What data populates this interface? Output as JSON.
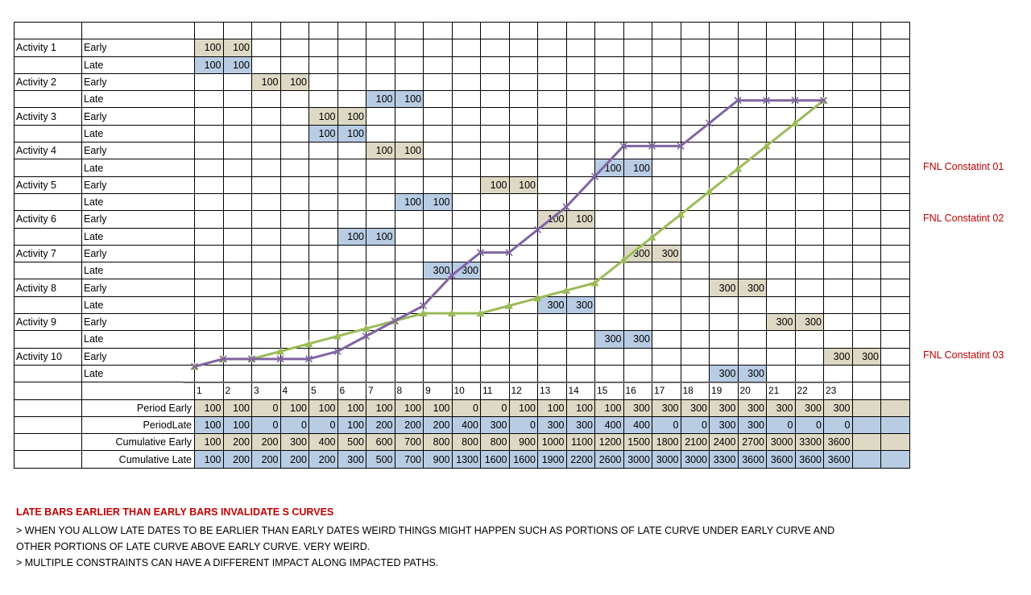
{
  "periods": [
    "1",
    "2",
    "3",
    "4",
    "5",
    "6",
    "7",
    "8",
    "9",
    "10",
    "11",
    "12",
    "13",
    "14",
    "15",
    "16",
    "17",
    "18",
    "19",
    "20",
    "21",
    "22",
    "23"
  ],
  "type_labels": {
    "early": "Early",
    "late": "Late"
  },
  "activities": [
    {
      "name": "Activity 1",
      "early": {
        "start": 1,
        "values": [
          "100",
          "100"
        ]
      },
      "late": {
        "start": 1,
        "values": [
          "100",
          "100"
        ]
      }
    },
    {
      "name": "Activity 2",
      "early": {
        "start": 3,
        "values": [
          "100",
          "100"
        ]
      },
      "late": {
        "start": 7,
        "values": [
          "100",
          "100"
        ]
      }
    },
    {
      "name": "Activity 3",
      "early": {
        "start": 5,
        "values": [
          "100",
          "100"
        ]
      },
      "late": {
        "start": 5,
        "values": [
          "100",
          "100"
        ]
      }
    },
    {
      "name": "Activity 4",
      "early": {
        "start": 7,
        "values": [
          "100",
          "100"
        ]
      },
      "late": {
        "start": 15,
        "values": [
          "100",
          "100"
        ]
      }
    },
    {
      "name": "Activity 5",
      "early": {
        "start": 11,
        "values": [
          "100",
          "100"
        ]
      },
      "late": {
        "start": 8,
        "values": [
          "100",
          "100"
        ]
      }
    },
    {
      "name": "Activity 6",
      "early": {
        "start": 13,
        "values": [
          "100",
          "100"
        ]
      },
      "late": {
        "start": 6,
        "values": [
          "100",
          "100"
        ]
      }
    },
    {
      "name": "Activity 7",
      "early": {
        "start": 16,
        "values": [
          "300",
          "300"
        ]
      },
      "late": {
        "start": 9,
        "values": [
          "300",
          "300"
        ]
      }
    },
    {
      "name": "Activity 8",
      "early": {
        "start": 19,
        "values": [
          "300",
          "300"
        ]
      },
      "late": {
        "start": 13,
        "values": [
          "300",
          "300"
        ]
      }
    },
    {
      "name": "Activity 9",
      "early": {
        "start": 21,
        "values": [
          "300",
          "300"
        ]
      },
      "late": {
        "start": 15,
        "values": [
          "300",
          "300"
        ]
      }
    },
    {
      "name": "Activity 10",
      "early": {
        "start": 23,
        "values": [
          "300",
          "300"
        ]
      },
      "late": {
        "start": 19,
        "values": [
          "300",
          "300"
        ]
      }
    }
  ],
  "summary": [
    {
      "label": "Period Early",
      "kind": "early",
      "values": [
        "100",
        "100",
        "0",
        "100",
        "100",
        "100",
        "100",
        "100",
        "100",
        "0",
        "0",
        "100",
        "100",
        "100",
        "100",
        "300",
        "300",
        "300",
        "300",
        "300",
        "300",
        "300",
        "300"
      ]
    },
    {
      "label": "PeriodLate",
      "kind": "late",
      "values": [
        "100",
        "100",
        "0",
        "0",
        "0",
        "100",
        "200",
        "200",
        "200",
        "400",
        "300",
        "0",
        "300",
        "300",
        "400",
        "400",
        "0",
        "0",
        "300",
        "300",
        "0",
        "0",
        "0"
      ]
    },
    {
      "label": "Cumulative Early",
      "kind": "early",
      "values": [
        "100",
        "200",
        "200",
        "300",
        "400",
        "500",
        "600",
        "700",
        "800",
        "800",
        "800",
        "900",
        "1000",
        "1100",
        "1200",
        "1500",
        "1800",
        "2100",
        "2400",
        "2700",
        "3000",
        "3300",
        "3600"
      ]
    },
    {
      "label": "Cumulative Late",
      "kind": "late",
      "values": [
        "100",
        "200",
        "200",
        "200",
        "200",
        "300",
        "500",
        "700",
        "900",
        "1300",
        "1600",
        "1600",
        "1900",
        "2200",
        "2600",
        "3000",
        "3000",
        "3000",
        "3300",
        "3600",
        "3600",
        "3600",
        "3600"
      ]
    }
  ],
  "constraints": [
    {
      "label": "FNL Constatint 01",
      "activity_row": 4,
      "row_type": "late"
    },
    {
      "label": "FNL Constatint 02",
      "activity_row": 6,
      "row_type": "early"
    },
    {
      "label": "FNL Constatint 03",
      "activity_row": 10,
      "row_type": "early"
    }
  ],
  "notes": {
    "heading": "LATE BARS EARLIER THAN EARLY BARS INVALIDATE S CURVES",
    "lines": [
      "> WHEN YOU ALLOW LATE DATES TO BE EARLIER THAN EARLY DATES WEIRD THINGS MIGHT HAPPEN SUCH AS PORTIONS OF LATE CURVE UNDER EARLY CURVE AND",
      "OTHER PORTIONS OF LATE CURVE ABOVE EARLY CURVE. VERY WEIRD.",
      "> MULTIPLE CONSTRAINTS CAN HAVE A DIFFERENT IMPACT ALONG IMPACTED PATHS."
    ]
  },
  "colors": {
    "early_cell": "#ddd9c4",
    "late_cell": "#b8cce4",
    "early_curve": "#9bbb59",
    "late_curve": "#8064a2",
    "constraint_text": "#c00000"
  },
  "chart_data": {
    "type": "line",
    "x": [
      1,
      2,
      3,
      4,
      5,
      6,
      7,
      8,
      9,
      10,
      11,
      12,
      13,
      14,
      15,
      16,
      17,
      18,
      19,
      20,
      21,
      22,
      23
    ],
    "series": [
      {
        "name": "Cumulative Early",
        "marker": "triangle",
        "color": "#9bbb59",
        "values": [
          100,
          200,
          200,
          300,
          400,
          500,
          600,
          700,
          800,
          800,
          800,
          900,
          1000,
          1100,
          1200,
          1500,
          1800,
          2100,
          2400,
          2700,
          3000,
          3300,
          3600
        ]
      },
      {
        "name": "Cumulative Late",
        "marker": "x",
        "color": "#8064a2",
        "values": [
          100,
          200,
          200,
          200,
          200,
          300,
          500,
          700,
          900,
          1300,
          1600,
          1600,
          1900,
          2200,
          2600,
          3000,
          3000,
          3000,
          3300,
          3600,
          3600,
          3600,
          3600
        ]
      }
    ],
    "ylim": [
      0,
      3600
    ],
    "grid": true,
    "legend": "none"
  }
}
